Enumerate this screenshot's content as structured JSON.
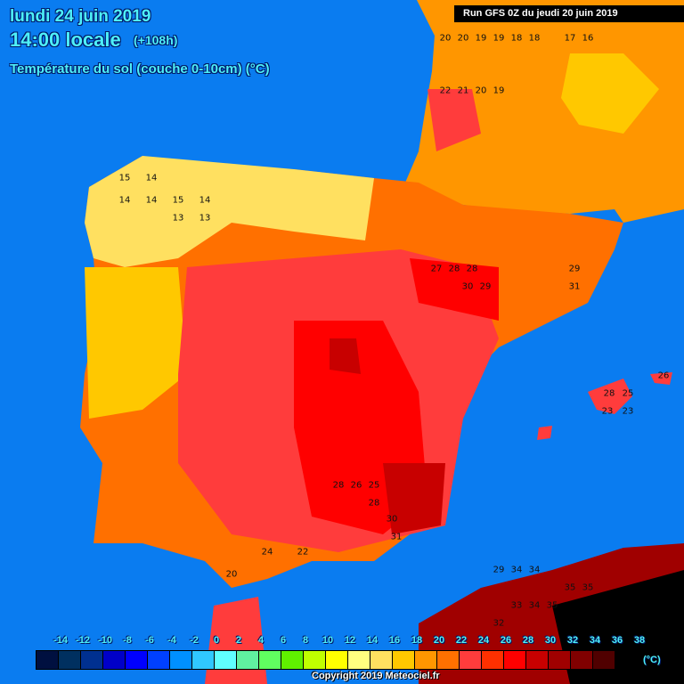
{
  "header": {
    "date": "lundi 24 juin 2019",
    "time": "14:00 locale",
    "lead": "(+108h)",
    "parameter": "Température du sol (couche 0-10cm) (°C)",
    "run": "Run GFS 0Z du jeudi 20 juin 2019"
  },
  "legend": {
    "ticks": [
      "-14",
      "-12",
      "-10",
      "-8",
      "-6",
      "-4",
      "-2",
      "0",
      "2",
      "4",
      "6",
      "8",
      "10",
      "12",
      "14",
      "16",
      "18",
      "20",
      "22",
      "24",
      "26",
      "28",
      "30",
      "32",
      "34",
      "36",
      "38"
    ],
    "colors": [
      "#001040",
      "#003060",
      "#003090",
      "#0000c8",
      "#0000ff",
      "#0040ff",
      "#0090ff",
      "#30c8ff",
      "#60ffff",
      "#60f0a0",
      "#60ff60",
      "#60f000",
      "#c0ff00",
      "#ffff00",
      "#ffff80",
      "#ffe060",
      "#ffc800",
      "#ff9600",
      "#ff7000",
      "#ff3c3c",
      "#ff3000",
      "#ff0000",
      "#c80000",
      "#a00000",
      "#800000",
      "#500000",
      "#000000"
    ],
    "unit": "(°C)"
  },
  "copyright": "Copyright 2019 Meteociel.fr",
  "map": {
    "sea_color": "#0a7cf0",
    "region_values": {
      "galicia": [
        "15",
        "14",
        "14",
        "14",
        "15",
        "14",
        "13",
        "13"
      ],
      "aquitaine": [
        "20",
        "20",
        "19",
        "19",
        "18",
        "18",
        "17",
        "16",
        "22",
        "21",
        "20",
        "19"
      ],
      "aragon": [
        "27",
        "28",
        "28",
        "30",
        "29",
        "31",
        "29"
      ],
      "andalusia": [
        "28",
        "26",
        "25",
        "28",
        "30",
        "31",
        "24",
        "22",
        "20"
      ],
      "balearics": [
        "28",
        "25",
        "23",
        "23",
        "26"
      ],
      "north_africa": [
        "29",
        "34",
        "34",
        "35",
        "35",
        "33",
        "34",
        "35",
        "32"
      ]
    }
  }
}
